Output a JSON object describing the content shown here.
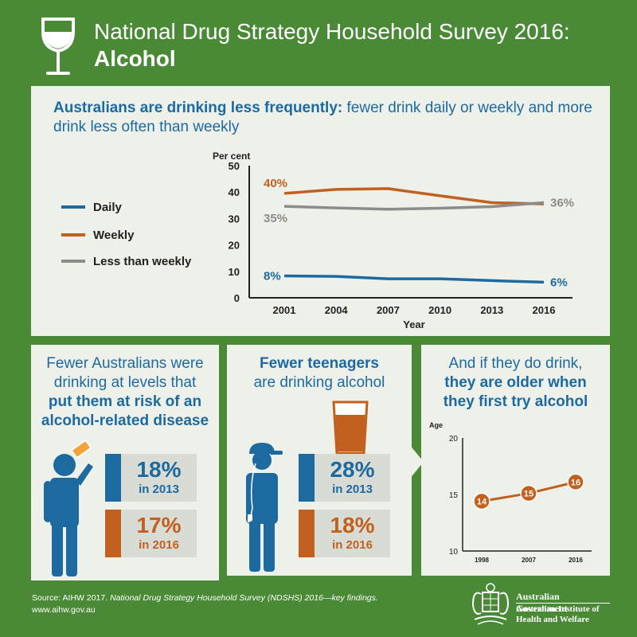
{
  "header": {
    "title": "National Drug Strategy Household Survey 2016:",
    "subtitle": "Alcohol",
    "icon": "wine-glass-icon"
  },
  "panel_top": {
    "heading_bold": "Australians are drinking less frequently:",
    "heading_rest": " fewer drink daily or weekly and more drink less often than weekly",
    "legend": [
      {
        "label": "Daily",
        "color": "#1d6aa1"
      },
      {
        "label": "Weekly",
        "color": "#c1601f"
      },
      {
        "label": "Less than weekly",
        "color": "#8c8c8c"
      }
    ]
  },
  "panel_left": {
    "line1": "Fewer Australians were",
    "line2": "drinking at levels that",
    "line3": "put them at risk of an",
    "line4": "alcohol-related disease",
    "stats": [
      {
        "value": "18%",
        "year": "in 2013",
        "color": "#1d6aa1"
      },
      {
        "value": "17%",
        "year": "in 2016",
        "color": "#c1601f"
      }
    ]
  },
  "panel_mid": {
    "line1": "Fewer teenagers",
    "line2": "are drinking alcohol",
    "stats": [
      {
        "value": "28%",
        "year": "in 2013",
        "color": "#1d6aa1"
      },
      {
        "value": "18%",
        "year": "in 2016",
        "color": "#c1601f"
      }
    ]
  },
  "panel_right": {
    "line1": "And if they do drink,",
    "line2": "they are older when",
    "line3": "they first try alcohol"
  },
  "chart_data": [
    {
      "type": "line",
      "x": [
        2001,
        2004,
        2007,
        2010,
        2013,
        2016
      ],
      "xlabel": "Year",
      "ylabel": "Per cent",
      "ylim": [
        0,
        50
      ],
      "yticks": [
        0,
        10,
        20,
        30,
        40,
        50
      ],
      "series": [
        {
          "name": "Daily",
          "color": "#1d6aa1",
          "values": [
            8.3,
            8.1,
            7.2,
            7.2,
            6.5,
            5.9
          ],
          "labels": {
            "2001": "8%",
            "2016": "6%"
          }
        },
        {
          "name": "Weekly",
          "color": "#c1601f",
          "values": [
            39.5,
            41.0,
            41.3,
            38.6,
            36.0,
            35.5
          ],
          "labels": {
            "2001": "40%"
          }
        },
        {
          "name": "Less than weekly",
          "color": "#8c8c8c",
          "values": [
            34.6,
            34.0,
            33.5,
            33.9,
            34.5,
            36.0
          ],
          "labels": {
            "2001": "35%",
            "2016": "36%"
          }
        }
      ]
    },
    {
      "type": "line",
      "x": [
        1998,
        2007,
        2016
      ],
      "ylabel": "Age",
      "ylim": [
        10,
        20
      ],
      "yticks": [
        10,
        15,
        20
      ],
      "series": [
        {
          "color": "#c1601f",
          "values": [
            14.4,
            15.1,
            16.1
          ],
          "labels": [
            "14",
            "15",
            "16"
          ]
        }
      ]
    }
  ],
  "footer": {
    "source_prefix": "Source: AIHW 2017. ",
    "source_title": "National Drug Strategy Household Survey (NDSHS) 2016—key findings.",
    "url": "www.aihw.gov.au",
    "gov_name": "Australian Government",
    "aihw_line1": "Australian Institute of",
    "aihw_line2": "Health and Welfare"
  }
}
